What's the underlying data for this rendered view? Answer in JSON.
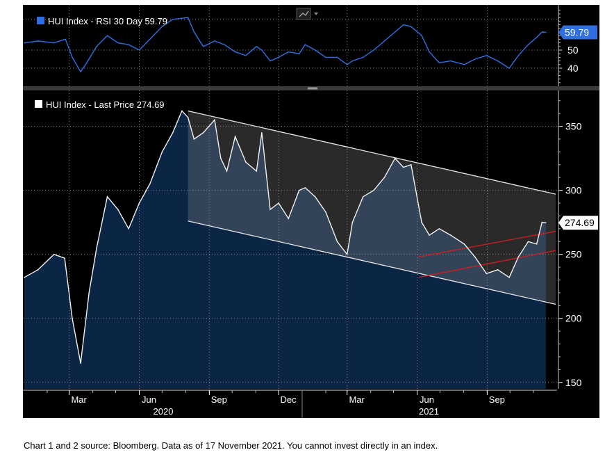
{
  "caption": "Chart 1 and 2 source: Bloomberg. Data as of 17 November 2021. You cannot invest directly in an index.",
  "colors": {
    "background": "#000000",
    "rsi_line": "#2f6fe0",
    "price_line": "#f2f2f2",
    "area_fill": "#0b2545",
    "channel_fill": "#2a2a2a",
    "trendline": "#e8e8e8",
    "breakout_line": "#cc1f1f",
    "axis_text": "#ffffff",
    "grid": "#8a8a8a"
  },
  "chart_data": [
    {
      "type": "line",
      "legend": "HUI Index - RSI 30 Day 59.79",
      "last_value_label": "59.79",
      "ylim": [
        30,
        75
      ],
      "y_ticks": [
        40,
        50
      ],
      "grid": true,
      "x_start": "2020-01-02",
      "x_end": "2021-11-17",
      "dates": [
        "2020-01-02",
        "2020-01-20",
        "2020-02-10",
        "2020-02-25",
        "2020-03-05",
        "2020-03-16",
        "2020-03-24",
        "2020-04-06",
        "2020-04-20",
        "2020-05-04",
        "2020-05-18",
        "2020-06-01",
        "2020-06-15",
        "2020-07-01",
        "2020-07-15",
        "2020-08-04",
        "2020-08-12",
        "2020-08-24",
        "2020-09-08",
        "2020-09-21",
        "2020-10-05",
        "2020-10-19",
        "2020-11-02",
        "2020-11-09",
        "2020-11-20",
        "2020-12-01",
        "2020-12-14",
        "2020-12-28",
        "2021-01-05",
        "2021-01-18",
        "2021-02-01",
        "2021-02-16",
        "2021-03-01",
        "2021-03-08",
        "2021-03-22",
        "2021-04-05",
        "2021-04-19",
        "2021-05-03",
        "2021-05-14",
        "2021-05-24",
        "2021-06-07",
        "2021-06-17",
        "2021-06-30",
        "2021-07-15",
        "2021-08-02",
        "2021-08-16",
        "2021-08-31",
        "2021-09-15",
        "2021-09-30",
        "2021-10-12",
        "2021-10-25",
        "2021-11-05",
        "2021-11-12",
        "2021-11-17"
      ],
      "values": [
        54,
        55,
        54,
        56,
        46,
        38,
        43,
        52,
        58,
        54,
        53,
        50,
        56,
        63,
        67,
        68,
        60,
        52,
        55,
        53,
        49,
        47,
        52,
        50,
        44,
        46,
        49,
        48,
        53,
        50,
        46,
        46,
        42,
        44,
        46,
        50,
        55,
        60,
        64,
        63,
        58,
        49,
        43,
        44,
        42,
        45,
        47,
        44,
        40,
        47,
        53,
        57,
        60,
        59.79
      ]
    },
    {
      "type": "area",
      "legend": "HUI Index - Last Price 274.69",
      "last_value_label": "274.69",
      "ylim": [
        145,
        378
      ],
      "y_ticks": [
        150,
        200,
        250,
        300,
        350
      ],
      "grid": true,
      "x_ticks": [
        "Mar",
        "Jun",
        "Sep",
        "Dec",
        "Mar",
        "Jun",
        "Sep"
      ],
      "x_groups": [
        "2020",
        "2021"
      ],
      "dates": [
        "2020-01-02",
        "2020-01-20",
        "2020-02-10",
        "2020-02-24",
        "2020-03-05",
        "2020-03-16",
        "2020-03-20",
        "2020-03-27",
        "2020-04-06",
        "2020-04-20",
        "2020-05-04",
        "2020-05-18",
        "2020-06-01",
        "2020-06-15",
        "2020-07-01",
        "2020-07-15",
        "2020-07-27",
        "2020-08-04",
        "2020-08-12",
        "2020-08-24",
        "2020-09-08",
        "2020-09-16",
        "2020-09-24",
        "2020-10-05",
        "2020-10-19",
        "2020-11-02",
        "2020-11-09",
        "2020-11-20",
        "2020-12-01",
        "2020-12-14",
        "2020-12-28",
        "2021-01-05",
        "2021-01-18",
        "2021-02-01",
        "2021-02-16",
        "2021-03-01",
        "2021-03-08",
        "2021-03-22",
        "2021-04-05",
        "2021-04-19",
        "2021-05-03",
        "2021-05-14",
        "2021-05-24",
        "2021-06-07",
        "2021-06-17",
        "2021-06-30",
        "2021-07-15",
        "2021-08-02",
        "2021-08-16",
        "2021-08-31",
        "2021-09-15",
        "2021-09-30",
        "2021-10-12",
        "2021-10-25",
        "2021-11-05",
        "2021-11-12",
        "2021-11-17"
      ],
      "values": [
        232,
        238,
        250,
        247,
        200,
        165,
        185,
        220,
        255,
        295,
        285,
        270,
        290,
        305,
        330,
        345,
        362,
        357,
        340,
        345,
        355,
        325,
        315,
        342,
        322,
        315,
        345,
        285,
        290,
        278,
        300,
        302,
        295,
        283,
        260,
        250,
        275,
        295,
        300,
        310,
        325,
        318,
        320,
        275,
        265,
        270,
        265,
        258,
        248,
        235,
        238,
        232,
        248,
        260,
        258,
        275,
        274.69
      ],
      "channel_upper": {
        "from": {
          "date": "2020-08-04",
          "value": 362
        },
        "to": {
          "date": "2021-11-30",
          "value": 297
        }
      },
      "channel_lower": {
        "from": {
          "date": "2020-08-04",
          "value": 276
        },
        "to": {
          "date": "2021-11-30",
          "value": 211
        }
      },
      "breakout_lines": [
        {
          "from": {
            "date": "2021-06-03",
            "value": 232
          },
          "to": {
            "date": "2021-11-30",
            "value": 253
          }
        },
        {
          "from": {
            "date": "2021-06-03",
            "value": 248
          },
          "to": {
            "date": "2021-11-30",
            "value": 268
          }
        }
      ]
    }
  ]
}
